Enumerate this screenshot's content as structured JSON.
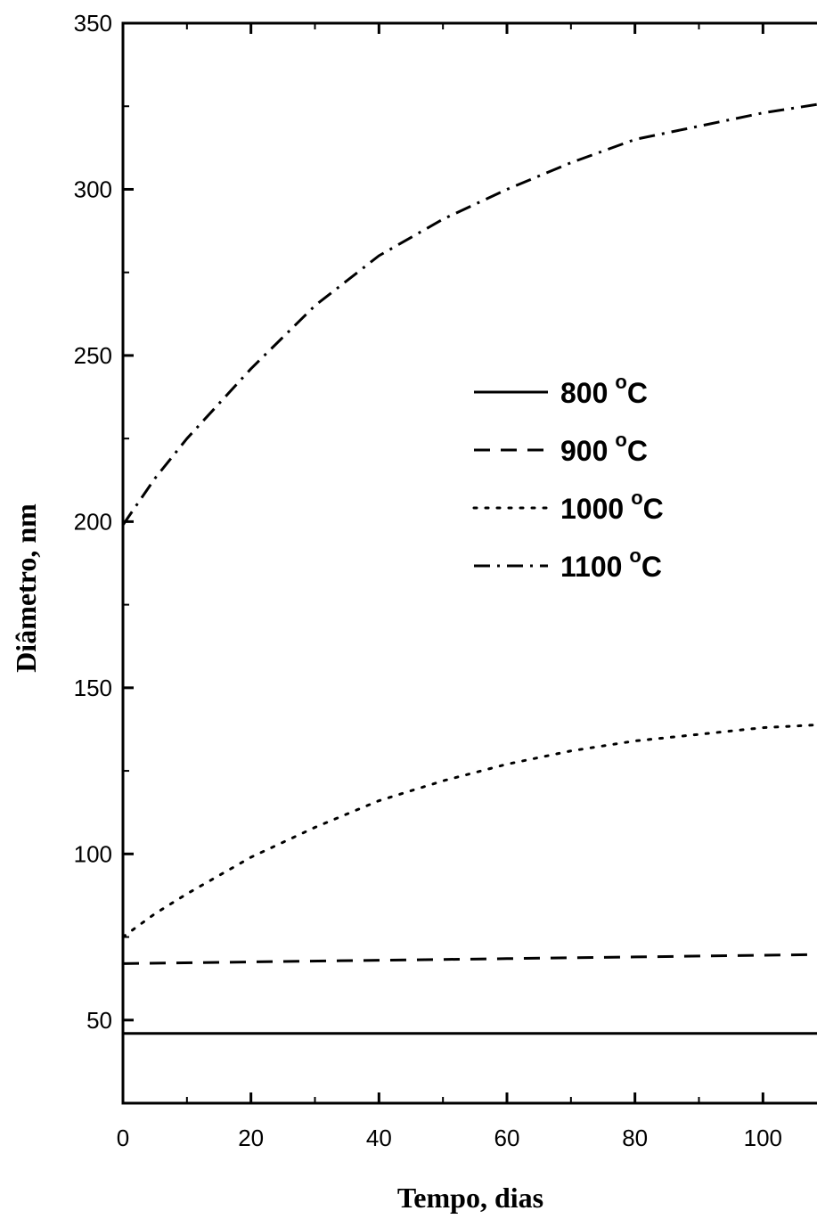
{
  "chart_data": {
    "type": "line",
    "title": "",
    "xlabel": "Tempo, dias",
    "ylabel": "Diâmetro, nm",
    "xlim": [
      0,
      120
    ],
    "ylim": [
      25,
      350
    ],
    "xticks": [
      "0",
      "20",
      "40",
      "60",
      "80",
      "100"
    ],
    "yticks": [
      "50",
      "100",
      "150",
      "200",
      "250",
      "300",
      "350"
    ],
    "grid": false,
    "legend_position": "center-right",
    "series": [
      {
        "name": "800",
        "unit": "C",
        "style": "solid",
        "x": [
          0,
          20,
          40,
          60,
          80,
          100,
          120
        ],
        "y": [
          46,
          46,
          46,
          46,
          46,
          46,
          46
        ]
      },
      {
        "name": "900",
        "unit": "C",
        "style": "dashed",
        "x": [
          0,
          20,
          40,
          60,
          80,
          100,
          120
        ],
        "y": [
          67,
          67.5,
          68,
          68.5,
          69,
          69.5,
          70
        ]
      },
      {
        "name": "1000",
        "unit": "C",
        "style": "dotted",
        "x": [
          0,
          5,
          10,
          20,
          30,
          40,
          50,
          60,
          70,
          80,
          90,
          100,
          110,
          120
        ],
        "y": [
          75,
          82,
          88,
          99,
          108,
          116,
          122,
          127,
          131,
          134,
          136,
          138,
          139,
          140
        ]
      },
      {
        "name": "1100",
        "unit": "C",
        "style": "dashdot",
        "x": [
          0,
          5,
          10,
          20,
          30,
          40,
          50,
          60,
          70,
          80,
          90,
          100,
          110,
          120
        ],
        "y": [
          199,
          213,
          225,
          246,
          265,
          280,
          291,
          300,
          308,
          315,
          319,
          323,
          326,
          328
        ]
      }
    ]
  }
}
